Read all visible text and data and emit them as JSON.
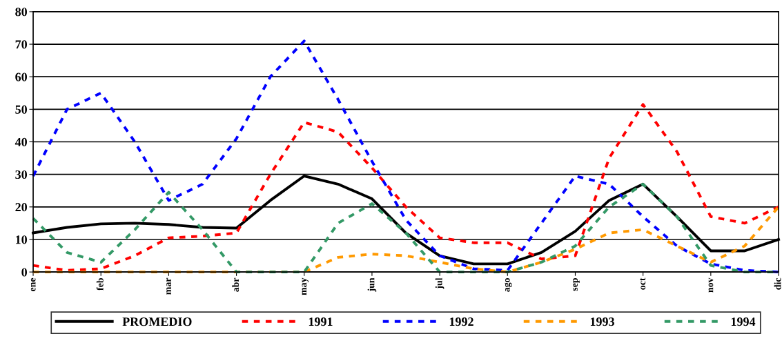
{
  "chart_data": {
    "type": "line",
    "categories": [
      "ene",
      null,
      "feb",
      null,
      "mar",
      null,
      "abr",
      null,
      "may",
      null,
      "jun",
      null,
      "jul",
      null,
      "ago",
      null,
      "sep",
      null,
      "oct",
      null,
      "nov",
      null,
      "dic"
    ],
    "series": [
      {
        "name": "PROMEDIO",
        "color": "#000000",
        "line_style": "solid",
        "values": [
          12,
          13.7,
          14.8,
          15,
          14.6,
          13.7,
          13.5,
          22,
          29.5,
          27,
          22.5,
          12,
          5,
          2.5,
          2.5,
          6,
          12.5,
          22,
          27,
          17,
          6.5,
          6.5,
          10
        ]
      },
      {
        "name": "1991",
        "color": "#ff0000",
        "line_style": "dashed",
        "values": [
          2,
          0.5,
          1,
          5,
          10.5,
          11,
          12,
          30,
          46,
          43,
          32,
          20,
          10.5,
          9,
          9,
          4,
          5,
          35,
          51.5,
          37,
          17,
          15,
          20
        ]
      },
      {
        "name": "1992",
        "color": "#0000ff",
        "line_style": "dashed",
        "values": [
          29.5,
          50,
          55,
          40,
          22,
          27,
          41,
          60,
          71,
          53,
          34,
          16,
          5,
          1,
          0.5,
          15,
          29.5,
          27,
          17,
          8,
          2.5,
          0.5,
          0
        ]
      },
      {
        "name": "1993",
        "color": "#ff9900",
        "line_style": "dashed",
        "values": [
          0,
          0,
          0,
          0,
          0,
          0,
          0,
          0,
          0,
          4.5,
          5.5,
          5,
          3,
          1,
          0,
          3,
          7,
          12,
          13,
          8,
          3,
          8,
          20
        ]
      },
      {
        "name": "1994",
        "color": "#339966",
        "line_style": "dashed",
        "values": [
          16.5,
          6,
          3,
          13,
          24.5,
          13,
          0,
          0,
          0,
          15,
          21,
          12,
          0,
          0,
          0,
          3,
          8,
          20,
          27,
          17,
          2,
          0,
          0
        ]
      }
    ],
    "ylim": [
      0,
      80
    ],
    "yticks": [
      0,
      10,
      20,
      30,
      40,
      50,
      60,
      70,
      80
    ],
    "grid": "y",
    "legend": "bottom"
  }
}
